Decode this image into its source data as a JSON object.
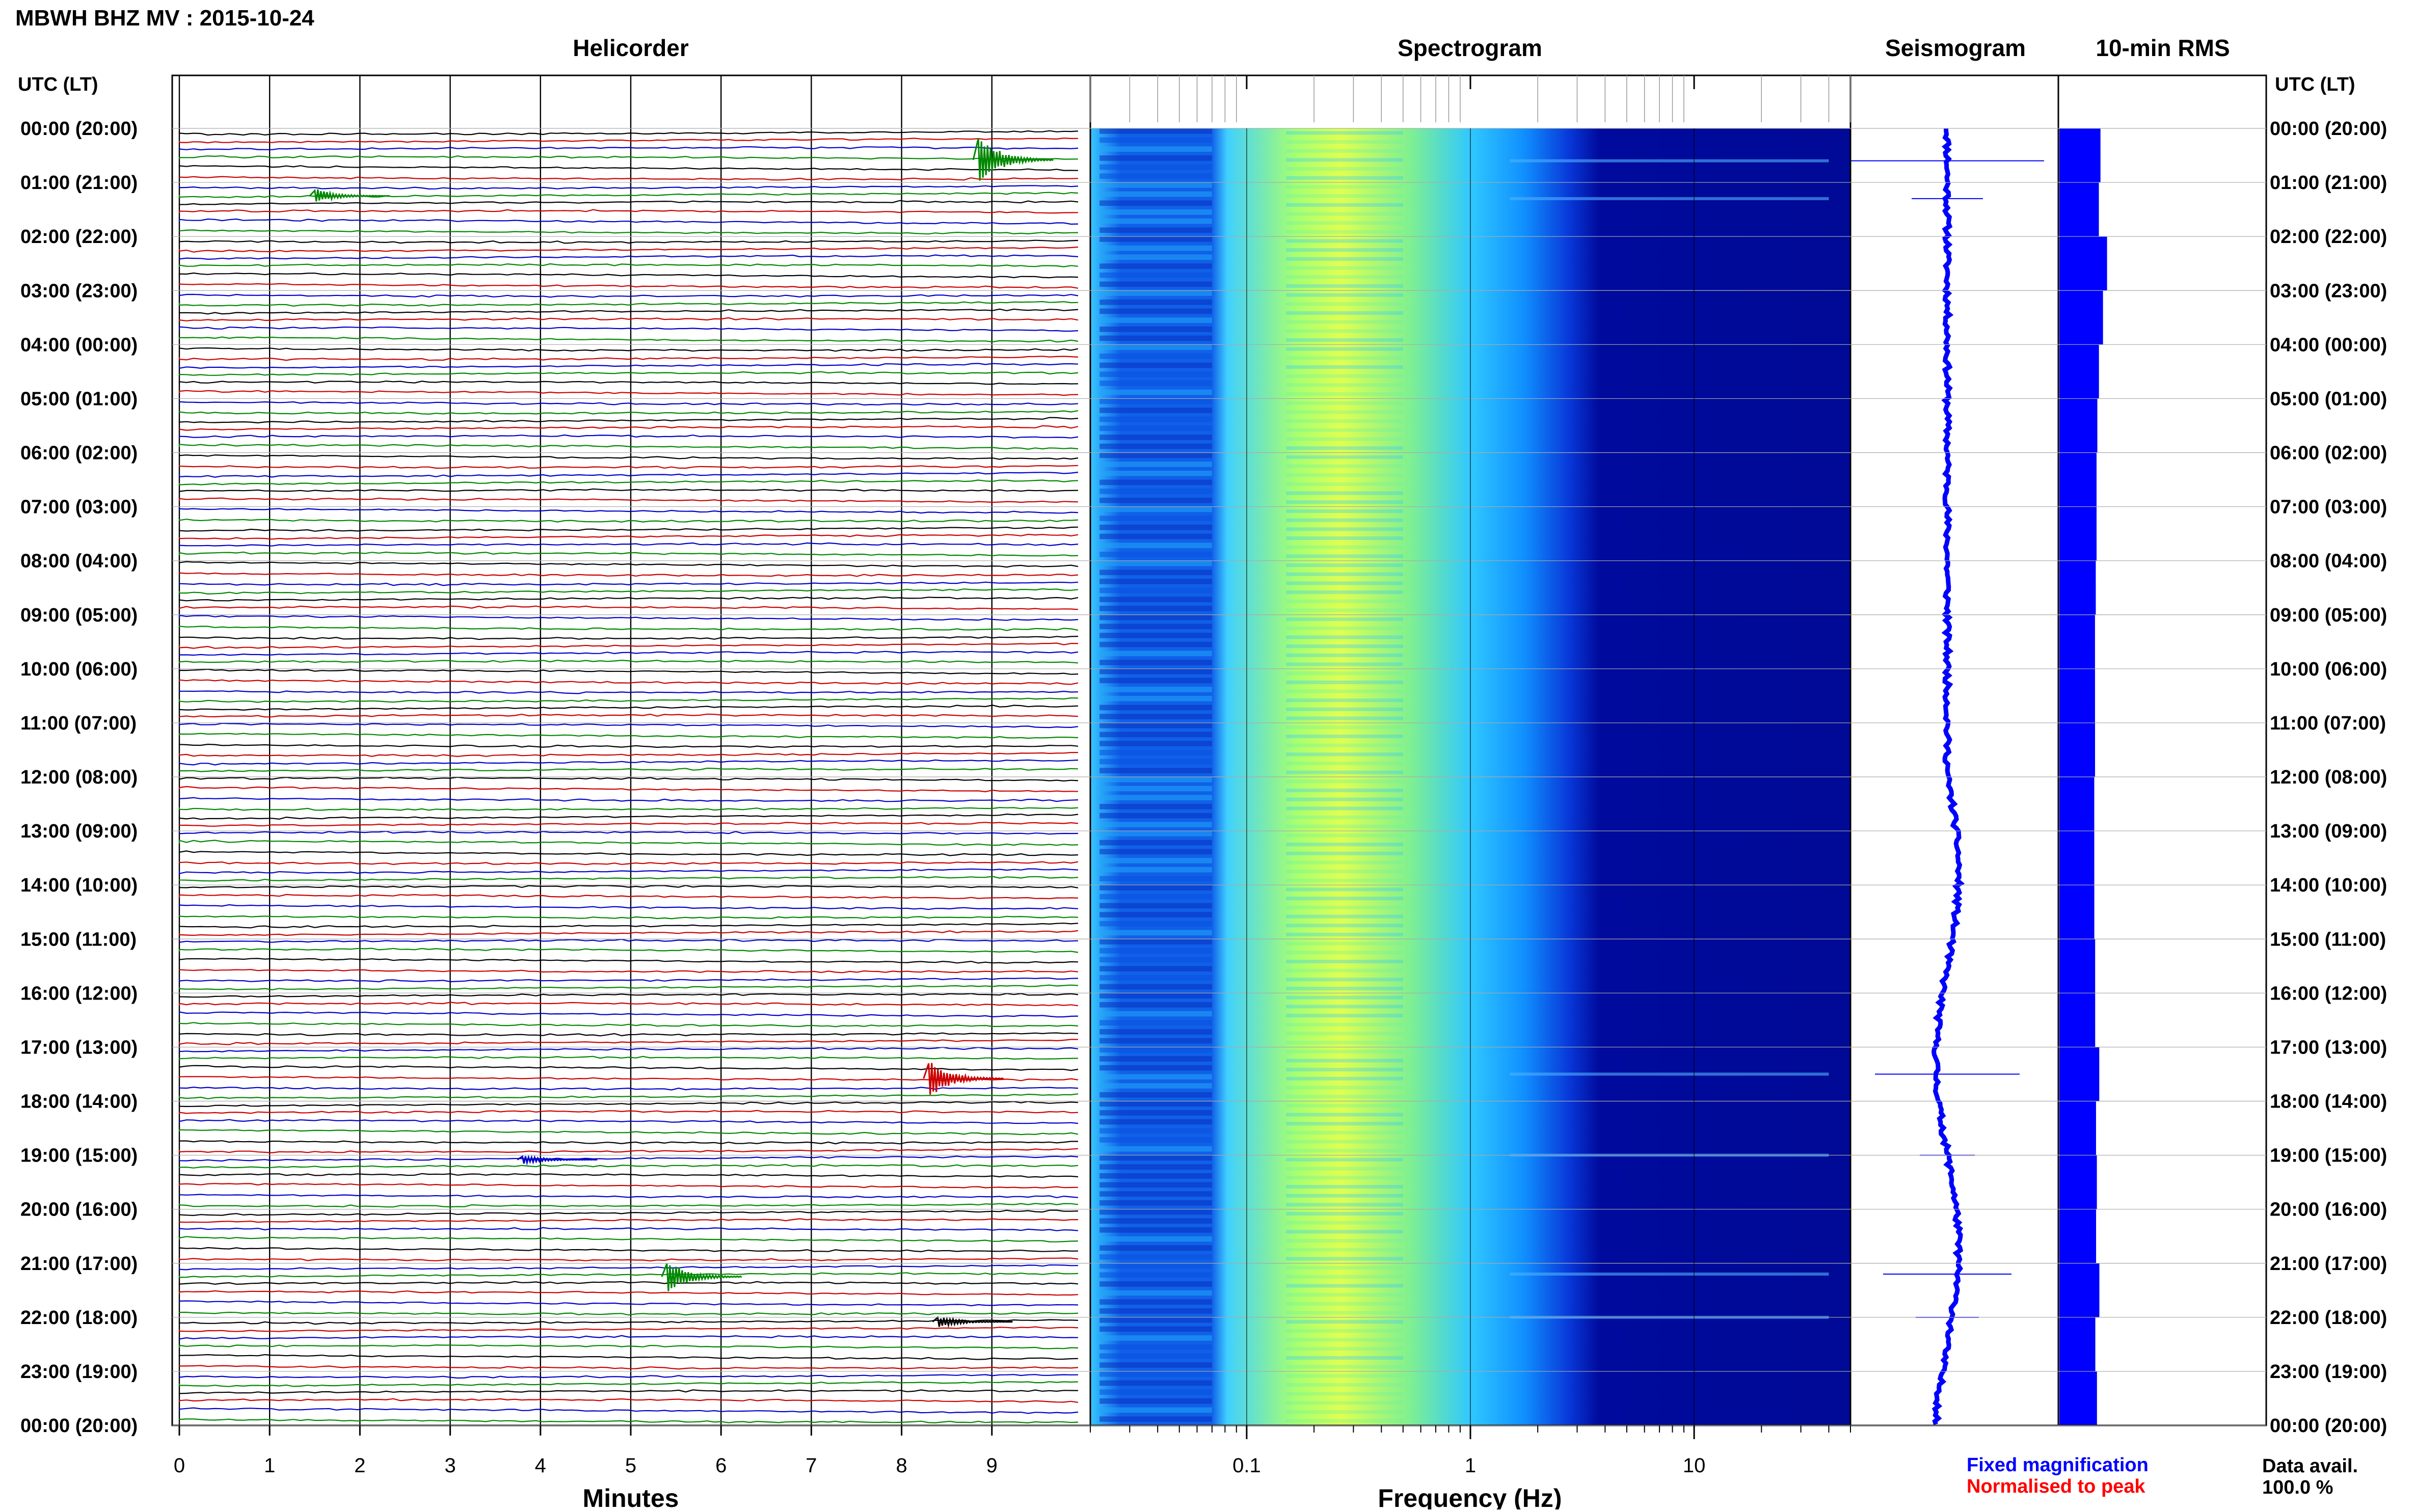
{
  "header": {
    "station_title": "MBWH BHZ MV : 2015-10-24",
    "utc_label_left": "UTC (LT)",
    "utc_label_right": "UTC (LT)"
  },
  "panels": {
    "helicorder_title": "Helicorder",
    "spectrogram_title": "Spectrogram",
    "seismogram_title": "Seismogram",
    "rms_title": "10-min RMS"
  },
  "axes": {
    "minutes_label": "Minutes",
    "minutes_ticks": [
      "0",
      "1",
      "2",
      "3",
      "4",
      "5",
      "6",
      "7",
      "8",
      "9"
    ],
    "frequency_label": "Frequency (Hz)",
    "frequency_ticks": [
      "0.1",
      "1",
      "10"
    ]
  },
  "time_labels": [
    "00:00 (20:00)",
    "01:00 (21:00)",
    "02:00 (22:00)",
    "03:00 (23:00)",
    "04:00 (00:00)",
    "05:00 (01:00)",
    "06:00 (02:00)",
    "07:00 (03:00)",
    "08:00 (04:00)",
    "09:00 (05:00)",
    "10:00 (06:00)",
    "11:00 (07:00)",
    "12:00 (08:00)",
    "13:00 (09:00)",
    "14:00 (10:00)",
    "15:00 (11:00)",
    "16:00 (12:00)",
    "17:00 (13:00)",
    "18:00 (14:00)",
    "19:00 (15:00)",
    "20:00 (16:00)",
    "21:00 (17:00)",
    "22:00 (18:00)",
    "23:00 (19:00)",
    "00:00 (20:00)"
  ],
  "legend": {
    "fixed_magnification": "Fixed magnification",
    "normalised_to_peak": "Normalised to peak",
    "data_avail_label": "Data avail.",
    "data_avail_value": "100.0 %"
  },
  "colors": {
    "trace_cycle": [
      "#000000",
      "#cc0000",
      "#0000cc",
      "#008800"
    ],
    "accent_blue": "#0000ff",
    "accent_red": "#ff0000",
    "spectrogram_low": "#00008f",
    "spectrogram_mid": "#00c8ff",
    "spectrogram_high": "#e8ff40"
  },
  "chart_data": {
    "type": "heatmap",
    "traces_per_hour": 6,
    "hours": 24,
    "minutes_range": [
      0,
      10
    ],
    "frequency_range_hz": [
      0.02,
      50
    ],
    "frequency_scale": "log",
    "events": [
      {
        "hour_fraction": 0.6,
        "minute": 8.85,
        "amp": 1.0
      },
      {
        "hour_fraction": 1.3,
        "minute": 1.5,
        "amp": 0.25
      },
      {
        "hour_fraction": 17.5,
        "minute": 8.3,
        "amp": 0.7
      },
      {
        "hour_fraction": 21.2,
        "minute": 5.4,
        "amp": 0.6
      },
      {
        "hour_fraction": 22.0,
        "minute": 8.4,
        "amp": 0.2
      },
      {
        "hour_fraction": 19.0,
        "minute": 3.8,
        "amp": 0.15
      }
    ],
    "rms_relative": [
      0.52,
      0.5,
      0.6,
      0.55,
      0.5,
      0.48,
      0.47,
      0.47,
      0.46,
      0.45,
      0.45,
      0.45,
      0.44,
      0.44,
      0.44,
      0.45,
      0.45,
      0.5,
      0.46,
      0.47,
      0.46,
      0.5,
      0.45,
      0.47
    ]
  }
}
